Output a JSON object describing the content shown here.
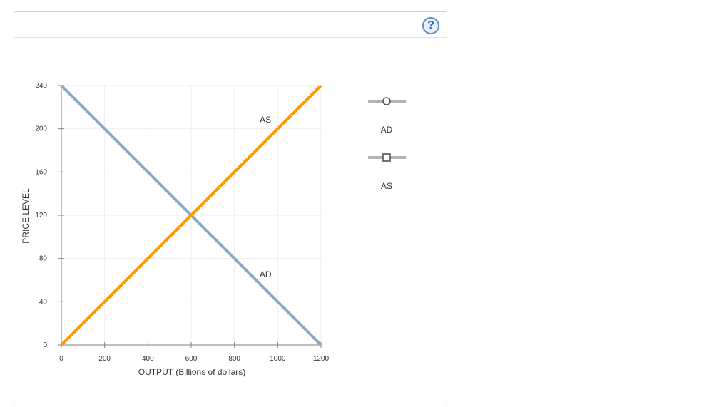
{
  "help": {
    "label": "?"
  },
  "colors": {
    "ad": "#84aacb",
    "as": "#ff9900",
    "axis": "#7f7f7f",
    "grid": "#eeeeee",
    "legend_line": "#b3b3b3",
    "legend_marker": "#555555"
  },
  "legend": {
    "items": [
      {
        "label": "AD",
        "marker": "circle-icon"
      },
      {
        "label": "AS",
        "marker": "square-icon"
      }
    ]
  },
  "chart_data": {
    "type": "line",
    "xlabel": "OUTPUT (Billions of dollars)",
    "ylabel": "PRICE LEVEL",
    "xlim": [
      0,
      1200
    ],
    "ylim": [
      0,
      240
    ],
    "x_ticks": [
      0,
      200,
      400,
      600,
      800,
      1000,
      1200
    ],
    "y_ticks": [
      0,
      40,
      80,
      120,
      160,
      200,
      240
    ],
    "grid": true,
    "series": [
      {
        "name": "AD",
        "x": [
          0,
          1200
        ],
        "y": [
          240,
          0
        ]
      },
      {
        "name": "AS",
        "x": [
          0,
          1200
        ],
        "y": [
          0,
          240
        ]
      }
    ],
    "annotations": [
      {
        "text": "AS",
        "x": 950,
        "y": 203
      },
      {
        "text": "AD",
        "x": 950,
        "y": 60
      }
    ]
  }
}
